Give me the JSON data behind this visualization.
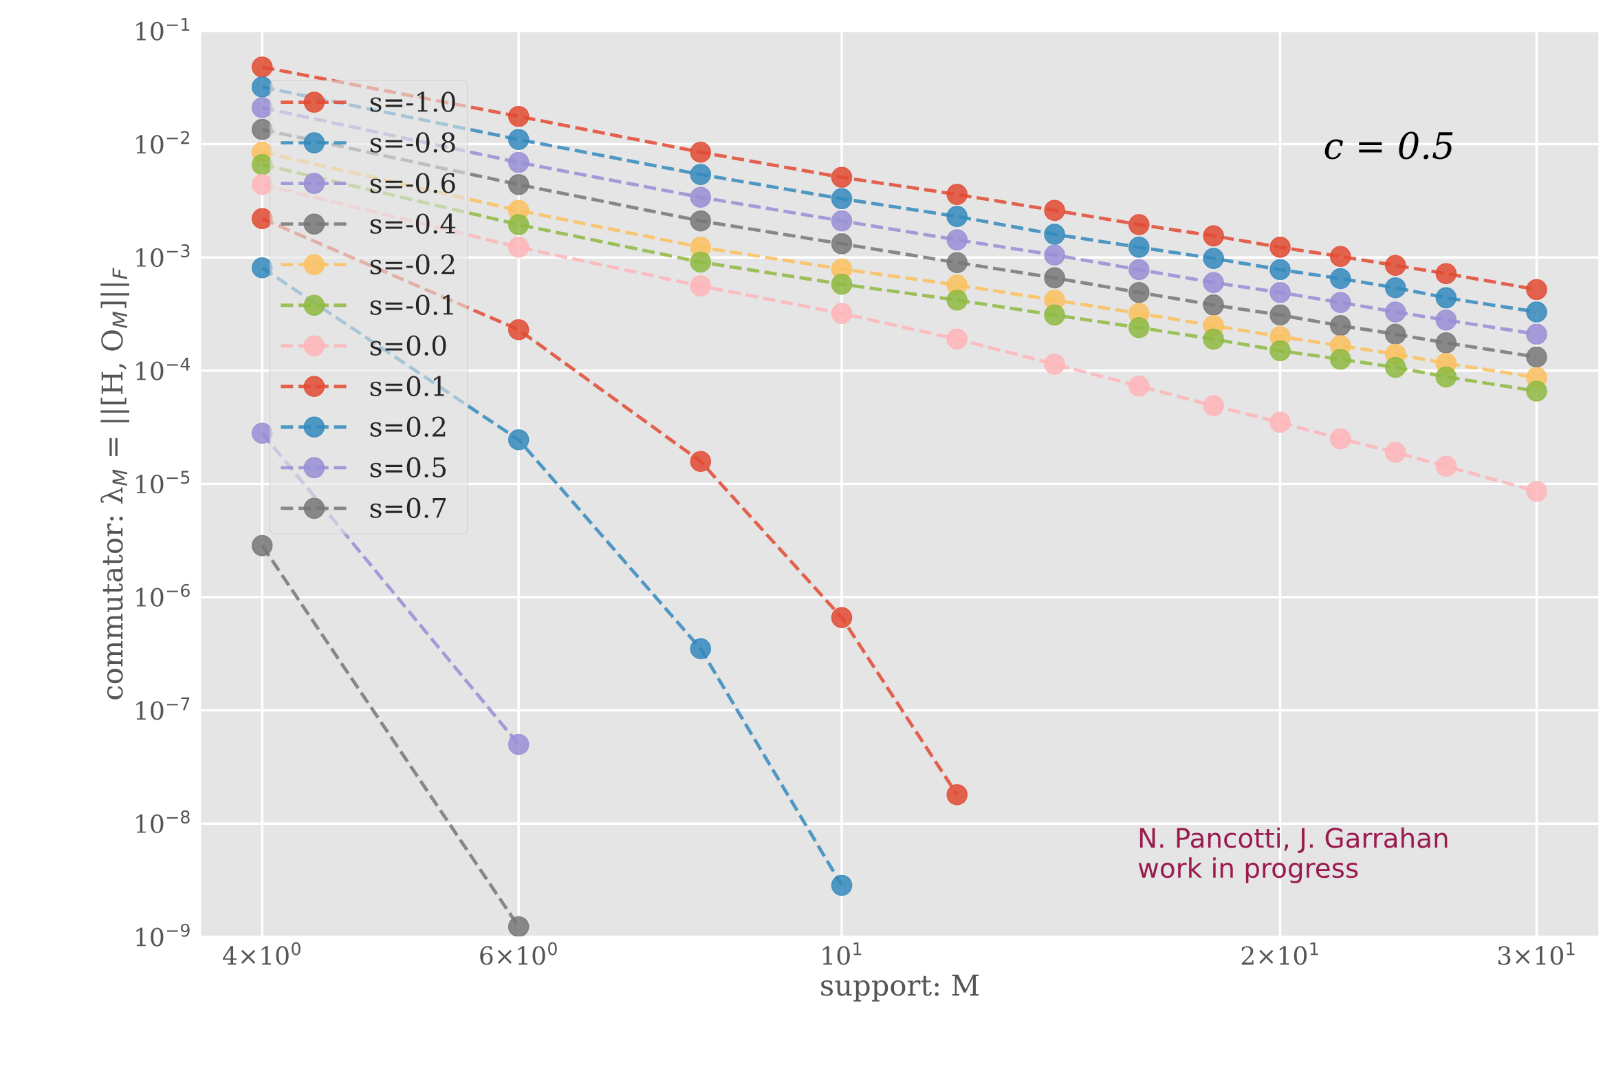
{
  "chart_data": {
    "type": "line",
    "xlabel": "support: M",
    "ylabel": "commutator: λ$_{M}$ = ||[H, O$_{M}$]||$_{F}$",
    "annotations": [
      "c = 0.5",
      "N. Pancotti, J. Garrahan\nwork in progress"
    ],
    "log": "xy",
    "grid": true,
    "legend": "top left",
    "marker": "circle",
    "line_style": "dashed",
    "xlim": [
      3.63,
      33.1
    ],
    "ylim": [
      1e-09,
      0.1
    ],
    "xticks": [
      {
        "value": 4,
        "label": "4×10$^{0}$"
      },
      {
        "value": 6,
        "label": "6×10$^{0}$"
      },
      {
        "value": 10,
        "label": "10$^{1}$"
      },
      {
        "value": 20,
        "label": "2×10$^{1}$"
      },
      {
        "value": 30,
        "label": "3×10$^{1}$"
      }
    ],
    "yticks": [
      {
        "value": 1e-09,
        "label": "10$^{−9}$"
      },
      {
        "value": 1e-08,
        "label": "10$^{−8}$"
      },
      {
        "value": 1e-07,
        "label": "10$^{−7}$"
      },
      {
        "value": 1e-06,
        "label": "10$^{−6}$"
      },
      {
        "value": 1e-05,
        "label": "10$^{−5}$"
      },
      {
        "value": 0.0001,
        "label": "10$^{−4}$"
      },
      {
        "value": 0.001,
        "label": "10$^{−3}$"
      },
      {
        "value": 0.01,
        "label": "10$^{−2}$"
      },
      {
        "value": 0.1,
        "label": "10$^{−1}$"
      }
    ],
    "x": [
      4,
      6,
      8,
      10,
      12,
      14,
      16,
      18,
      20,
      22,
      24,
      26,
      30
    ],
    "series": [
      {
        "name": "s=-1.0",
        "color": "#e24a33",
        "values": [
          0.048,
          0.0176,
          0.0085,
          0.0051,
          0.0036,
          0.0026,
          0.00195,
          0.00155,
          0.00123,
          0.00102,
          0.00085,
          0.00072,
          0.00052
        ]
      },
      {
        "name": "s=-0.8",
        "color": "#348abd",
        "values": [
          0.032,
          0.011,
          0.0054,
          0.0033,
          0.0023,
          0.0016,
          0.00123,
          0.00098,
          0.00078,
          0.00065,
          0.00054,
          0.00044,
          0.00033
        ]
      },
      {
        "name": "s=-0.6",
        "color": "#988ed5",
        "values": [
          0.021,
          0.0069,
          0.0034,
          0.0021,
          0.00143,
          0.00105,
          0.00078,
          0.0006,
          0.00049,
          0.0004,
          0.00033,
          0.00028,
          0.00021
        ]
      },
      {
        "name": "s=-0.4",
        "color": "#777777",
        "values": [
          0.0135,
          0.0044,
          0.0021,
          0.00132,
          0.0009,
          0.00066,
          0.00049,
          0.00038,
          0.00031,
          0.00025,
          0.00021,
          0.000176,
          0.000132
        ]
      },
      {
        "name": "s=-0.2",
        "color": "#fbc15e",
        "values": [
          0.0085,
          0.0026,
          0.00123,
          0.00079,
          0.00057,
          0.00042,
          0.00032,
          0.00025,
          0.0002,
          0.000166,
          0.00014,
          0.000116,
          8.7e-05
        ]
      },
      {
        "name": "s=-0.1",
        "color": "#8eba42",
        "values": [
          0.0066,
          0.00195,
          0.00091,
          0.00058,
          0.00042,
          0.00031,
          0.00024,
          0.00019,
          0.00015,
          0.000126,
          0.000107,
          8.8e-05,
          6.6e-05
        ]
      },
      {
        "name": "s=0.0",
        "color": "#ffb5b8",
        "values": [
          0.0044,
          0.00123,
          0.00056,
          0.00032,
          0.00019,
          0.000114,
          7.3e-05,
          4.9e-05,
          3.5e-05,
          2.5e-05,
          1.9e-05,
          1.43e-05,
          8.6e-06
        ]
      },
      {
        "name": "s=0.1",
        "color": "#e24a33",
        "values": [
          0.0022,
          0.00023,
          1.58e-05,
          6.6e-07,
          1.8e-08,
          null,
          null,
          null,
          null,
          null,
          null,
          null,
          null
        ]
      },
      {
        "name": "s=0.2",
        "color": "#348abd",
        "values": [
          0.00081,
          2.45e-05,
          3.5e-07,
          2.85e-09,
          null,
          null,
          null,
          null,
          null,
          null,
          null,
          null,
          null
        ]
      },
      {
        "name": "s=0.5",
        "color": "#988ed5",
        "values": [
          2.8e-05,
          5e-08,
          null,
          null,
          null,
          null,
          null,
          null,
          null,
          null,
          null,
          null,
          null
        ]
      },
      {
        "name": "s=0.7",
        "color": "#777777",
        "values": [
          2.85e-06,
          1.23e-09,
          null,
          null,
          null,
          null,
          null,
          null,
          null,
          null,
          null,
          null,
          null
        ]
      }
    ]
  }
}
